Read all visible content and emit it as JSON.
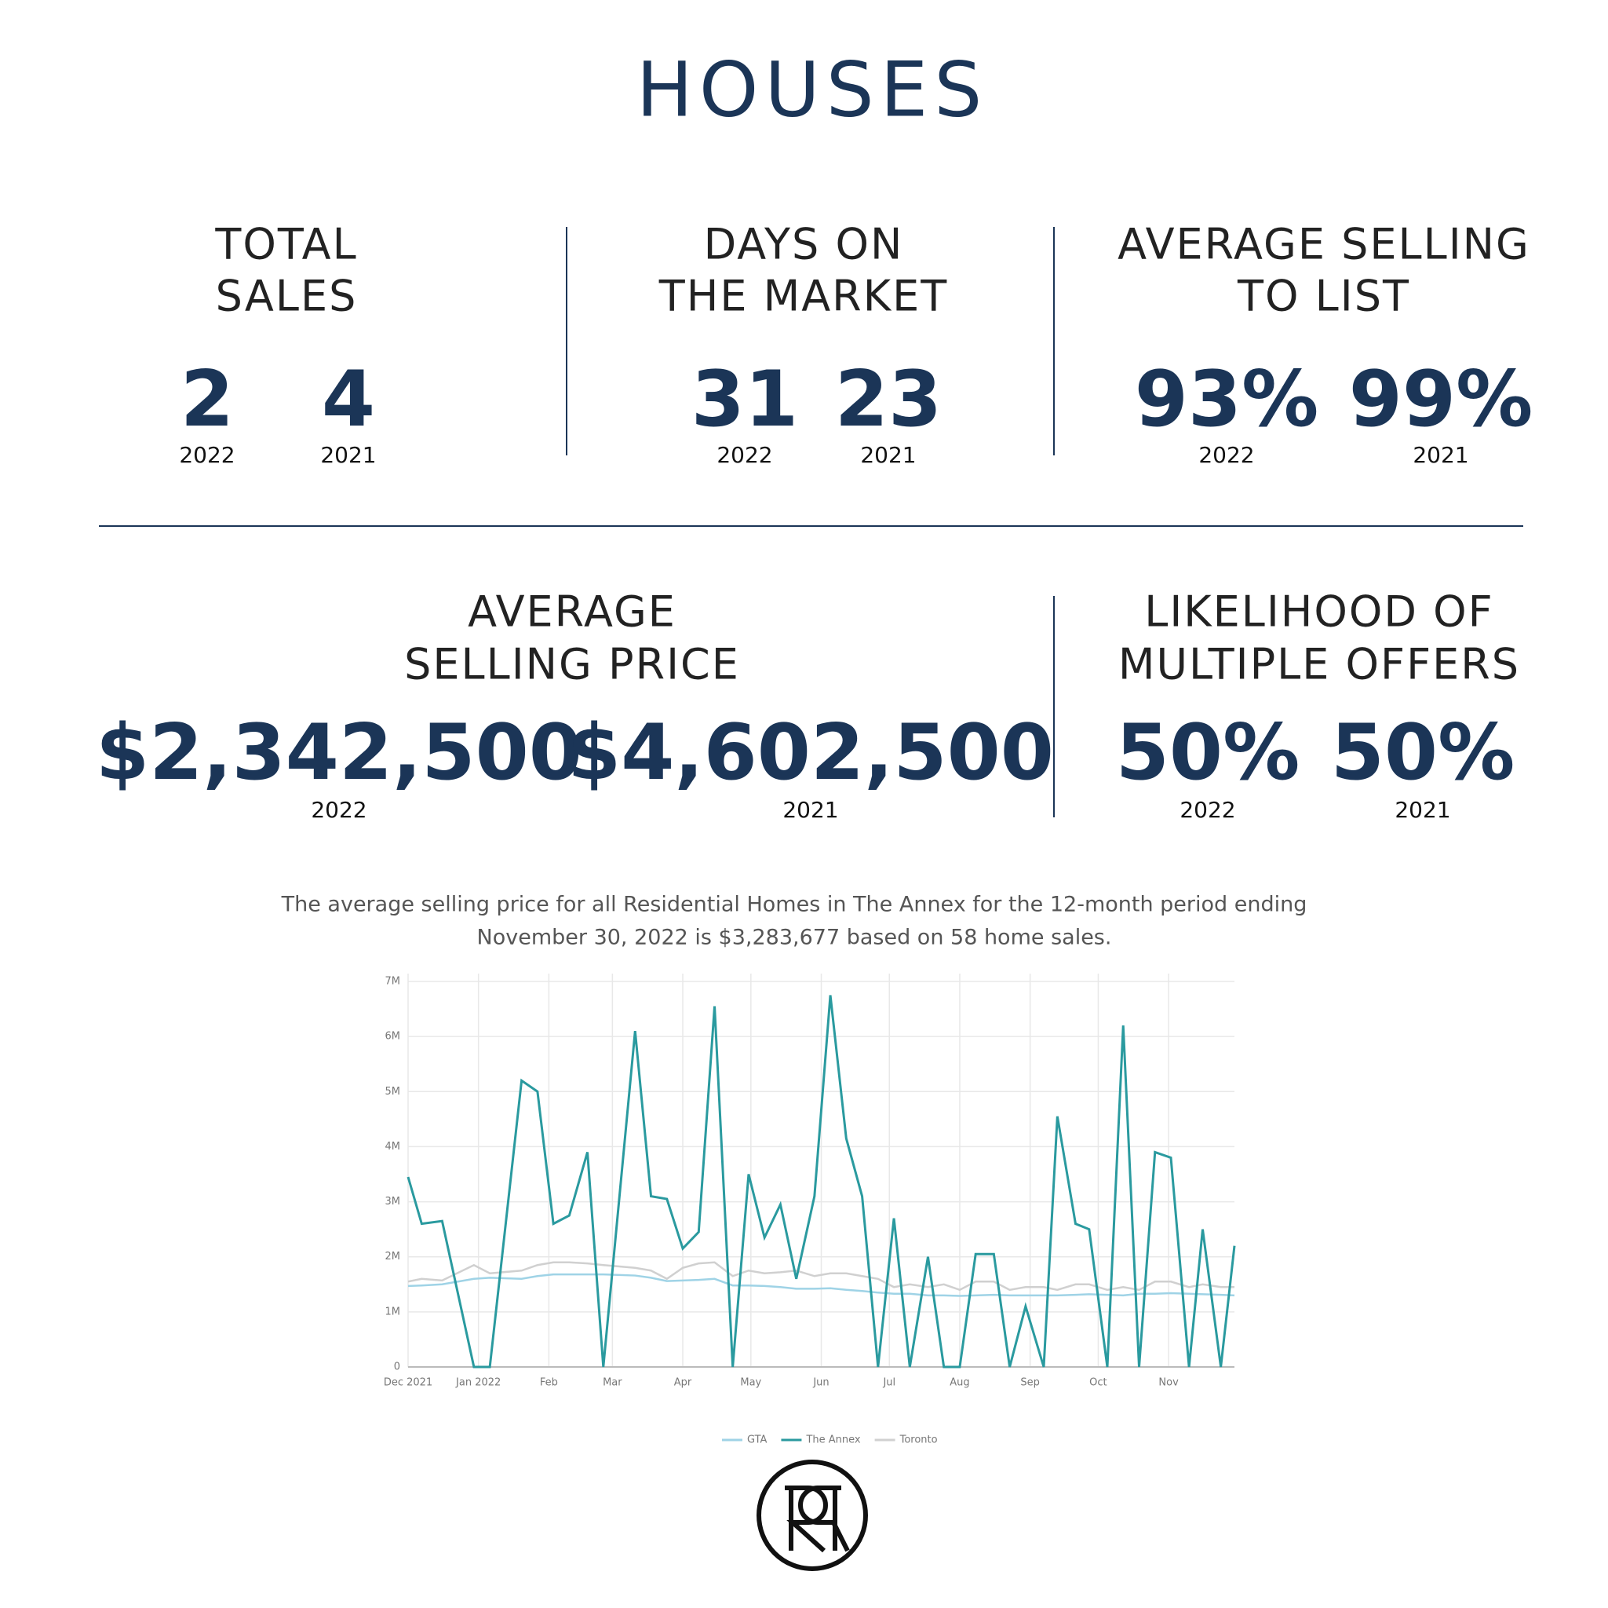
{
  "title": "HOUSES",
  "stats_top": [
    {
      "title": [
        "TOTAL",
        "SALES"
      ],
      "figures": [
        {
          "value": "2",
          "year": "2022"
        },
        {
          "value": "4",
          "year": "2021"
        }
      ]
    },
    {
      "title": [
        "DAYS ON",
        "THE MARKET"
      ],
      "figures": [
        {
          "value": "31",
          "year": "2022"
        },
        {
          "value": "23",
          "year": "2021"
        }
      ]
    },
    {
      "title": [
        "AVERAGE SELLING",
        "TO LIST"
      ],
      "figures": [
        {
          "value": "93%",
          "year": "2022"
        },
        {
          "value": "99%",
          "year": "2021"
        }
      ]
    }
  ],
  "stats_bottom": [
    {
      "title": [
        "AVERAGE",
        "SELLING PRICE"
      ],
      "figures": [
        {
          "value": "$2,342,500",
          "year": "2022"
        },
        {
          "value": "$4,602,500",
          "year": "2021"
        }
      ]
    },
    {
      "title": [
        "LIKELIHOOD OF",
        "MULTIPLE OFFERS"
      ],
      "figures": [
        {
          "value": "50%",
          "year": "2022"
        },
        {
          "value": "50%",
          "year": "2021"
        }
      ]
    }
  ],
  "caption": [
    "The average selling price for all Residential Homes in The Annex for the 12-month period ending",
    "November 30, 2022 is $3,283,677 based on 58 home sales."
  ],
  "chart_data": {
    "type": "line",
    "x": [
      0,
      6,
      15,
      29,
      36,
      50,
      57,
      64,
      71,
      79,
      86,
      100,
      107,
      114,
      121,
      128,
      135,
      143,
      150,
      157,
      164,
      171,
      179,
      186,
      193,
      200,
      207,
      214,
      221,
      229,
      236,
      243,
      250,
      258,
      265,
      272,
      280,
      286,
      294,
      300,
      308,
      315,
      322,
      329,
      336,
      344,
      350,
      358,
      364
    ],
    "series": [
      {
        "name": "GTA",
        "color": "#9fd3e6",
        "values": [
          1470000,
          1480000,
          1500000,
          1600000,
          1620000,
          1600000,
          1650000,
          1680000,
          1680000,
          1680000,
          1680000,
          1660000,
          1620000,
          1560000,
          1570000,
          1580000,
          1600000,
          1480000,
          1480000,
          1470000,
          1450000,
          1420000,
          1420000,
          1430000,
          1400000,
          1380000,
          1350000,
          1330000,
          1330000,
          1300000,
          1300000,
          1290000,
          1300000,
          1310000,
          1300000,
          1300000,
          1300000,
          1300000,
          1310000,
          1320000,
          1310000,
          1300000,
          1330000,
          1330000,
          1340000,
          1330000,
          1320000,
          1310000,
          1300000
        ]
      },
      {
        "name": "The Annex",
        "color": "#2a9a9f",
        "values": [
          3450000,
          2600000,
          2650000,
          0,
          0,
          5200000,
          5000000,
          2600000,
          2750000,
          3900000,
          0,
          6100000,
          3100000,
          3050000,
          2150000,
          2450000,
          6550000,
          0,
          3500000,
          2350000,
          2950000,
          1600000,
          3100000,
          6750000,
          4150000,
          3100000,
          0,
          2700000,
          0,
          2000000,
          0,
          0,
          2050000,
          2050000,
          0,
          1100000,
          0,
          4550000,
          2600000,
          2500000,
          0,
          6200000,
          0,
          3900000,
          3800000,
          0,
          2500000,
          0,
          2200000
        ]
      },
      {
        "name": "Toronto",
        "color": "#d0d0d0",
        "values": [
          1550000,
          1600000,
          1570000,
          1850000,
          1700000,
          1750000,
          1850000,
          1900000,
          1900000,
          1880000,
          1850000,
          1800000,
          1750000,
          1600000,
          1800000,
          1880000,
          1900000,
          1650000,
          1750000,
          1700000,
          1720000,
          1750000,
          1650000,
          1700000,
          1700000,
          1650000,
          1600000,
          1450000,
          1500000,
          1450000,
          1500000,
          1400000,
          1550000,
          1550000,
          1400000,
          1450000,
          1450000,
          1400000,
          1500000,
          1500000,
          1400000,
          1450000,
          1400000,
          1550000,
          1550000,
          1450000,
          1500000,
          1450000,
          1450000
        ]
      }
    ],
    "xlim": [
      0,
      364
    ],
    "xticks": [
      {
        "value": 0,
        "label": "Dec 2021"
      },
      {
        "value": 31,
        "label": "Jan 2022"
      },
      {
        "value": 62,
        "label": "Feb"
      },
      {
        "value": 90,
        "label": "Mar"
      },
      {
        "value": 121,
        "label": "Apr"
      },
      {
        "value": 151,
        "label": "May"
      },
      {
        "value": 182,
        "label": "Jun"
      },
      {
        "value": 212,
        "label": "Jul"
      },
      {
        "value": 243,
        "label": "Aug"
      },
      {
        "value": 274,
        "label": "Sep"
      },
      {
        "value": 304,
        "label": "Oct"
      },
      {
        "value": 335,
        "label": "Nov"
      }
    ],
    "ylim": [
      0,
      7000000
    ],
    "yticks": [
      0,
      {
        "value": 1000000,
        "label": "1M"
      },
      {
        "value": 2000000,
        "label": "2M"
      },
      {
        "value": 3000000,
        "label": "3M"
      },
      {
        "value": 4000000,
        "label": "4M"
      },
      {
        "value": 5000000,
        "label": "5M"
      },
      {
        "value": 6000000,
        "label": "6M"
      },
      {
        "value": 7000000,
        "label": "7M"
      }
    ],
    "grid": true,
    "legend": "bottom"
  }
}
